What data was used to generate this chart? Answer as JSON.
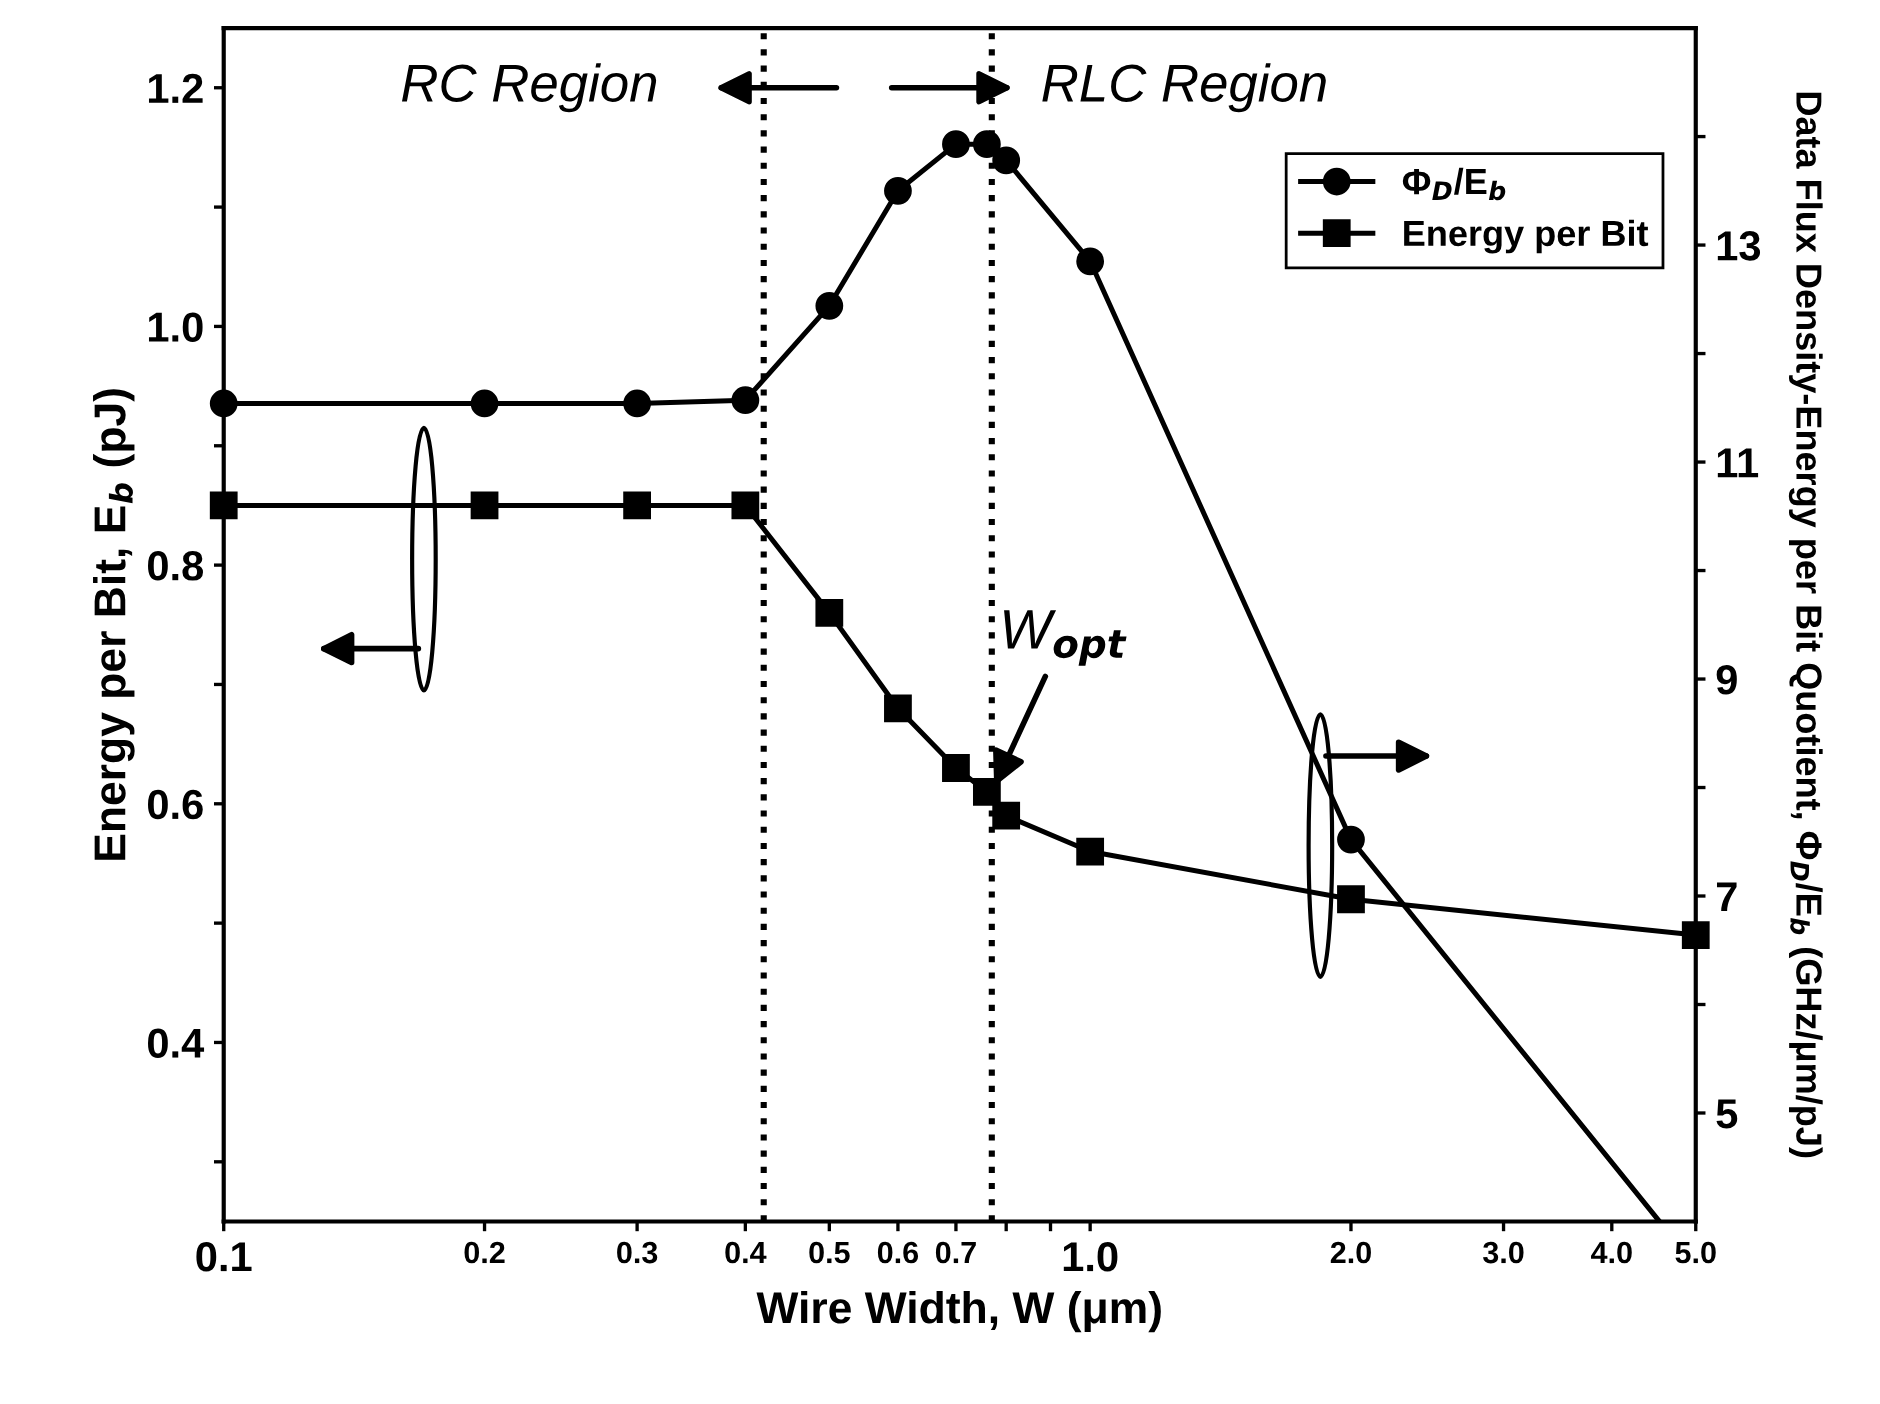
{
  "chart_data": {
    "type": "line",
    "xlabel": "Wire Width, W (μm)",
    "ylabel": "Energy per Bit, E$_{b}$ (pJ)",
    "y2label": "Data Flux Density-Energy per Bit Quotient, Φ$_{D}$/E$_{b}$ (GHz/μm/pJ)",
    "log": "x",
    "xlim": [
      0.1,
      5.0
    ],
    "xticks": [
      0.1,
      0.2,
      0.3,
      0.4,
      0.5,
      0.6,
      0.7,
      {
        "value": 0.8,
        "label": null
      },
      {
        "value": 0.9,
        "label": null
      },
      {
        "value": 1.0,
        "label": "1.0"
      },
      {
        "value": 2.0,
        "label": "2.0"
      },
      {
        "value": 3.0,
        "label": "3.0"
      },
      {
        "value": 4.0,
        "label": "4.0"
      },
      {
        "value": 5.0,
        "label": "5.0"
      }
    ],
    "ylim": [
      0.25,
      1.25
    ],
    "yticks": [
      {
        "value": 0.3,
        "label": null
      },
      0.4,
      {
        "value": 0.5,
        "label": null
      },
      0.6,
      {
        "value": 0.7,
        "label": null
      },
      0.8,
      {
        "value": 0.9,
        "label": null
      },
      {
        "value": 1.0,
        "label": "1.0"
      },
      {
        "value": 1.1,
        "label": null
      },
      1.2
    ],
    "y2lim": [
      4,
      15
    ],
    "y2ticks": [
      5,
      {
        "value": 6,
        "label": null
      },
      7,
      {
        "value": 8,
        "label": null
      },
      9,
      {
        "value": 10,
        "label": null
      },
      11,
      {
        "value": 12,
        "label": null
      },
      13,
      {
        "value": 14,
        "label": null
      }
    ],
    "series": [
      {
        "name": "Φ$_{D}$/E$_{b}$",
        "color": "#000000",
        "axis": "y2",
        "marker": "circle",
        "x": [
          0.1,
          0.2,
          0.3,
          0.4,
          0.5,
          0.6,
          0.7,
          0.76,
          0.8,
          1.0,
          2.0
        ],
        "values": [
          11.54,
          11.54,
          11.54,
          11.57,
          12.44,
          13.5,
          13.93,
          13.93,
          13.78,
          12.85,
          7.52
        ]
      },
      {
        "color": "#000000",
        "axis": "y2",
        "marker": "none",
        "x": [
          2.0,
          4.54
        ],
        "values": [
          7.52,
          4.0
        ]
      },
      {
        "name": "Energy per Bit",
        "color": "#000000",
        "axis": "y",
        "marker": "square",
        "x": [
          0.1,
          0.2,
          0.3,
          0.4,
          0.5,
          0.6,
          0.7,
          0.76,
          0.8,
          1.0,
          2.0,
          5.0
        ],
        "values": [
          0.85,
          0.85,
          0.85,
          0.85,
          0.76,
          0.68,
          0.63,
          0.61,
          0.59,
          0.56,
          0.52,
          0.49
        ]
      }
    ],
    "ref_lines": [
      {
        "axis": "x",
        "value": 0.42,
        "line_style": "dotted",
        "color": "#000000"
      },
      {
        "axis": "x",
        "value": 0.77,
        "line_style": "dotted",
        "color": "#000000"
      }
    ],
    "annotations": [
      "RC Region",
      "RLC Region",
      {
        "text": "W$_{opt}$",
        "x": 0.77,
        "y": 0.61
      }
    ],
    "line_style": "solid",
    "legend": "top right",
    "grid": false
  }
}
